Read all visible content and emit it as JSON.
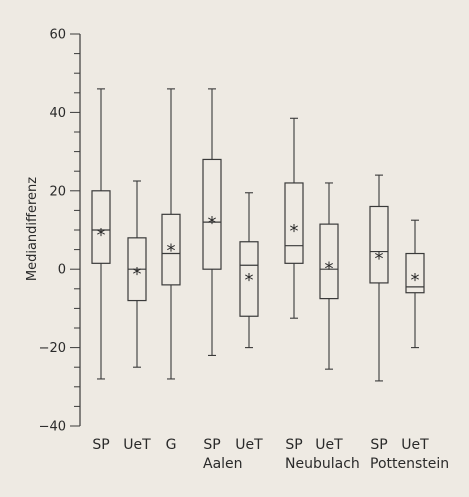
{
  "chart_data": {
    "type": "boxplot",
    "title": "",
    "xlabel": "",
    "ylabel": "Mediandifferenz",
    "ylim": [
      -40,
      60
    ],
    "y_ticks": [
      -40,
      -20,
      0,
      20,
      40,
      60
    ],
    "y_minor_step": 5,
    "mean_marker": "*",
    "categories": [
      "SP",
      "UeT",
      "G",
      "SP",
      "UeT",
      "SP",
      "UeT",
      "SP",
      "UeT"
    ],
    "groups": [
      {
        "label": "Aalen",
        "categories": [
          3,
          4
        ]
      },
      {
        "label": "Neubulach",
        "categories": [
          5,
          6
        ]
      },
      {
        "label": "Pottenstein",
        "categories": [
          7,
          8
        ]
      }
    ],
    "boxes": [
      {
        "category": "SP",
        "whisker_low": -28,
        "q1": 1.5,
        "median": 10,
        "q3": 20,
        "whisker_high": 46,
        "mean": 9.5
      },
      {
        "category": "UeT",
        "whisker_low": -25,
        "q1": -8,
        "median": 0,
        "q3": 8,
        "whisker_high": 22.5,
        "mean": -0.5
      },
      {
        "category": "G",
        "whisker_low": -28,
        "q1": -4,
        "median": 4,
        "q3": 14,
        "whisker_high": 46,
        "mean": 5.5
      },
      {
        "category": "SP",
        "whisker_low": -22,
        "q1": 0,
        "median": 12,
        "q3": 28,
        "whisker_high": 46,
        "mean": 12.5
      },
      {
        "category": "UeT",
        "whisker_low": -20,
        "q1": -12,
        "median": 1,
        "q3": 7,
        "whisker_high": 19.5,
        "mean": -2
      },
      {
        "category": "SP",
        "whisker_low": -12.5,
        "q1": 1.5,
        "median": 6,
        "q3": 22,
        "whisker_high": 38.5,
        "mean": 10.5
      },
      {
        "category": "UeT",
        "whisker_low": -25.5,
        "q1": -7.5,
        "median": 0,
        "q3": 11.5,
        "whisker_high": 22,
        "mean": 1
      },
      {
        "category": "SP",
        "whisker_low": -28.5,
        "q1": -3.5,
        "median": 4.5,
        "q3": 16,
        "whisker_high": 24,
        "mean": 3.5
      },
      {
        "category": "UeT",
        "whisker_low": -20,
        "q1": -6,
        "median": -4.5,
        "q3": 4,
        "whisker_high": 12.5,
        "mean": -2
      }
    ]
  }
}
